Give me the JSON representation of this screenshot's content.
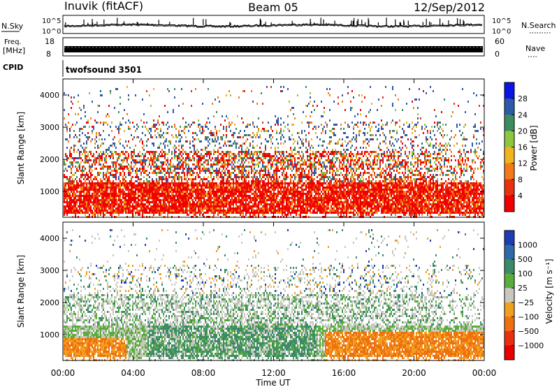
{
  "header": {
    "station": "Inuvik (fitACF)",
    "beam": "Beam 05",
    "date": "12/Sep/2012"
  },
  "noise_panel": {
    "left_label": "N.Sky",
    "left_ticks": [
      "10^5",
      "10^0"
    ],
    "right_label": "N.Search",
    "right_ticks": [
      "10^5",
      "10^0"
    ]
  },
  "freq_panel": {
    "left_label_top": "Freq.",
    "left_label_bottom": "[MHz]",
    "left_ticks": [
      "18",
      "8"
    ],
    "right_label": "Nave",
    "right_ticks": [
      "60",
      "0"
    ]
  },
  "cpid_panel": {
    "label": "CPID",
    "value": "twofsound 3501"
  },
  "chart_data": [
    {
      "type": "heatmap",
      "name": "power",
      "ylabel": "Slant Range [km]",
      "yticks": [
        "1000",
        "2000",
        "3000",
        "4000"
      ],
      "ylim": [
        200,
        4500
      ],
      "colorbar_label": "Power [dB]",
      "colorbar_ticks": [
        "4",
        "8",
        "12",
        "16",
        "20",
        "24",
        "28"
      ],
      "colors": [
        "#0a14e6",
        "#2c5aa8",
        "#3e8c5e",
        "#8ec63f",
        "#f0b41e",
        "#f27a18",
        "#e8320f",
        "#f20000"
      ],
      "x_ticks": [
        "00:00",
        "04:00",
        "08:00",
        "12:00",
        "16:00",
        "20:00",
        "00:00"
      ]
    },
    {
      "type": "heatmap",
      "name": "velocity",
      "ylabel": "Slant Range [km]",
      "yticks": [
        "1000",
        "2000",
        "3000",
        "4000"
      ],
      "ylim": [
        200,
        4500
      ],
      "colorbar_label": "Velocity [m s⁻¹]",
      "colorbar_ticks": [
        "1000",
        "500",
        "100",
        "25",
        "−25",
        "−100",
        "−500",
        "−1000"
      ],
      "colors": [
        "#1e3cb4",
        "#2f6aa8",
        "#3a8c68",
        "#5aac3c",
        "#c8c8c0",
        "#f0a020",
        "#f07010",
        "#e83010",
        "#e80000"
      ],
      "x_ticks": [
        "00:00",
        "04:00",
        "08:00",
        "12:00",
        "16:00",
        "20:00",
        "00:00"
      ]
    }
  ],
  "xlabel": "Time UT"
}
